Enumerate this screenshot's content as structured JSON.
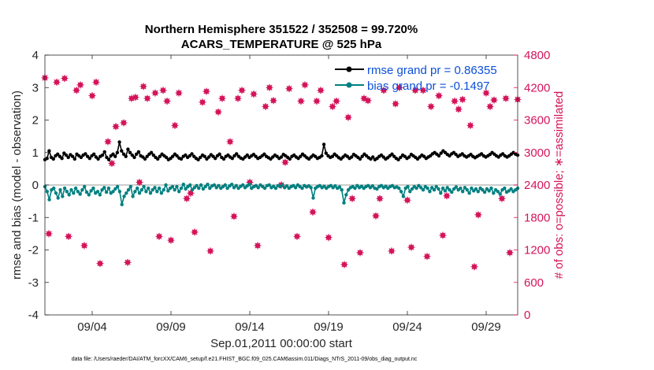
{
  "chart_data": {
    "type": "line",
    "title_line1": "Northern Hemisphere 351522 / 352508 = 99.720%",
    "title_line2": "ACARS_TEMPERATURE @ 525 hPa",
    "xlabel": "Sep.01,2011 00:00:00 start",
    "ylabel_left": "rmse and bias (model - observation)",
    "ylabel_right": "# of obs: o=possible; ∗=assimilated",
    "footer": "data file: /Users/raeder/DAI/ATM_forcXX/CAM6_setup/f.e21.FHIST_BGC.f09_025.CAM6assim.011/Diags_NTrS_2011-09/obs_diag_output.nc",
    "xlim": [
      1,
      31
    ],
    "ylim_left": [
      -4,
      4
    ],
    "ylim_right": [
      0,
      4800
    ],
    "x_ticks": [
      4,
      9,
      14,
      19,
      24,
      29
    ],
    "x_tick_labels": [
      "09/04",
      "09/09",
      "09/14",
      "09/19",
      "09/24",
      "09/29"
    ],
    "y_ticks_left": [
      "-4",
      "-3",
      "-2",
      "-1",
      "0",
      "1",
      "2",
      "3",
      "4"
    ],
    "y_ticks_right": [
      "0",
      "600",
      "1200",
      "1800",
      "2400",
      "3000",
      "3600",
      "4200",
      "4800"
    ],
    "legend": [
      "rmse grand pr = 0.86355",
      "bias grand pr = -0.1497"
    ],
    "colors": {
      "rmse": "#000000",
      "bias": "#008080",
      "obs": "#d4145a",
      "legend_text": "#0b4fd8"
    },
    "series": [
      {
        "name": "rmse",
        "values": [
          0.78,
          0.82,
          1.05,
          0.85,
          0.8,
          0.9,
          0.95,
          0.88,
          0.82,
          0.98,
          0.92,
          0.85,
          0.93,
          0.88,
          0.8,
          0.95,
          0.9,
          0.85,
          0.92,
          0.96,
          0.88,
          0.82,
          0.9,
          0.95,
          0.86,
          0.8,
          0.88,
          0.92,
          1.02,
          0.85,
          0.78,
          0.9,
          0.95,
          0.88,
          1.0,
          1.32,
          1.05,
          0.95,
          0.88,
          1.1,
          1.0,
          0.92,
          0.85,
          0.95,
          1.02,
          0.9,
          0.86,
          0.8,
          0.88,
          0.95,
          1.0,
          0.92,
          0.85,
          0.8,
          0.88,
          0.95,
          0.9,
          0.85,
          0.78,
          0.82,
          0.88,
          0.95,
          0.9,
          0.83,
          0.8,
          0.88,
          0.92,
          0.85,
          0.9,
          0.96,
          0.88,
          0.82,
          0.78,
          0.85,
          0.92,
          0.88,
          0.8,
          0.86,
          0.93,
          0.88,
          0.82,
          0.9,
          0.95,
          0.85,
          0.8,
          0.88,
          0.92,
          0.86,
          0.82,
          0.9,
          0.96,
          0.88,
          0.83,
          0.8,
          0.86,
          0.92,
          0.85,
          0.9,
          0.94,
          0.88,
          0.82,
          0.85,
          0.9,
          0.95,
          0.88,
          0.84,
          0.8,
          0.86,
          0.92,
          0.88,
          0.82,
          0.86,
          0.94,
          0.9,
          0.85,
          0.8,
          0.88,
          0.92,
          0.86,
          0.82,
          0.88,
          0.95,
          0.9,
          0.84,
          0.8,
          0.86,
          0.92,
          0.88,
          0.82,
          0.85,
          0.9,
          1.25,
          0.98,
          0.9,
          0.85,
          0.88,
          0.95,
          0.9,
          0.84,
          0.8,
          0.86,
          0.92,
          0.88,
          0.82,
          0.86,
          0.94,
          0.9,
          0.85,
          0.8,
          0.88,
          0.95,
          0.9,
          0.84,
          0.8,
          0.86,
          0.78,
          0.82,
          0.88,
          0.92,
          0.86,
          0.8,
          0.84,
          0.9,
          0.95,
          0.88,
          0.82,
          0.78,
          0.85,
          0.92,
          0.88,
          0.82,
          0.86,
          0.94,
          0.9,
          0.85,
          0.8,
          0.86,
          0.92,
          0.88,
          0.82,
          0.86,
          0.9,
          0.96,
          1.0,
          0.95,
          0.9,
          0.98,
          1.05,
          1.0,
          0.94,
          0.9,
          0.96,
          1.0,
          0.94,
          0.88,
          0.92,
          0.96,
          0.9,
          0.86,
          0.9,
          0.94,
          0.88,
          0.84,
          0.88,
          0.92,
          0.96,
          0.9,
          0.86,
          0.9,
          0.94,
          1.0,
          0.95,
          0.9,
          0.86,
          0.92,
          0.96,
          0.9,
          0.86,
          0.9,
          0.95,
          1.0,
          0.95,
          0.92
        ]
      },
      {
        "name": "bias",
        "values": [
          -0.05,
          -0.2,
          -0.45,
          -0.15,
          -0.1,
          -0.25,
          -0.4,
          -0.15,
          -0.35,
          -0.1,
          -0.2,
          -0.3,
          -0.15,
          -0.25,
          -0.1,
          -0.2,
          -0.28,
          -0.15,
          -0.05,
          -0.22,
          -0.3,
          -0.18,
          -0.1,
          -0.25,
          -0.2,
          -0.3,
          -0.15,
          -0.08,
          -0.22,
          -0.1,
          -0.25,
          -0.2,
          -0.12,
          -0.05,
          -0.2,
          -0.6,
          -0.35,
          -0.25,
          -0.15,
          -0.05,
          -0.35,
          -0.2,
          -0.1,
          -0.25,
          -0.15,
          -0.05,
          -0.2,
          -0.1,
          -0.25,
          -0.15,
          -0.08,
          -0.2,
          -0.1,
          -0.25,
          -0.15,
          0.0,
          -0.18,
          -0.1,
          -0.05,
          -0.15,
          -0.05,
          -0.2,
          -0.1,
          0.02,
          -0.12,
          -0.05,
          0.0,
          -0.15,
          -0.08,
          -0.02,
          -0.1,
          0.0,
          -0.12,
          -0.05,
          0.02,
          -0.1,
          -0.03,
          0.0,
          -0.08,
          -0.02,
          -0.1,
          -0.05,
          0.0,
          -0.1,
          -0.03,
          0.02,
          -0.08,
          -0.02,
          -0.1,
          -0.04,
          0.0,
          -0.08,
          -0.03,
          0.02,
          -0.1,
          -0.05,
          -0.02,
          -0.08,
          0.0,
          -0.05,
          -0.1,
          -0.02,
          0.0,
          -0.08,
          -0.04,
          -0.1,
          -0.02,
          -0.05,
          0.0,
          -0.08,
          -0.03,
          -0.1,
          -0.05,
          -0.02,
          -0.08,
          0.0,
          -0.05,
          -0.1,
          -0.02,
          -0.06,
          -0.03,
          -0.08,
          -0.4,
          -0.1,
          -0.05,
          -0.02,
          -0.08,
          -0.04,
          -0.1,
          -0.05,
          -0.02,
          -0.08,
          -0.03,
          -0.1,
          -0.06,
          -0.15,
          -0.55,
          -0.3,
          -0.15,
          -0.08,
          -0.05,
          -0.1,
          -0.02,
          -0.08,
          -0.04,
          -0.1,
          -0.05,
          -0.02,
          -0.08,
          -0.03,
          -0.1,
          -0.12,
          -0.05,
          -0.02,
          -0.08,
          -0.04,
          -0.1,
          -0.05,
          -0.02,
          -0.08,
          -0.06,
          -0.1,
          -0.2,
          -0.35,
          -0.1,
          -0.05,
          -0.2,
          -0.12,
          -0.05,
          -0.1,
          -0.02,
          -0.08,
          -0.15,
          -0.05,
          -0.1,
          -0.2,
          -0.08,
          -0.15,
          -0.05,
          -0.12,
          -0.25,
          -0.1,
          -0.18,
          -0.08,
          -0.15,
          -0.22,
          -0.12,
          -0.06,
          -0.15,
          -0.1,
          -0.2,
          -0.08,
          -0.15,
          -0.25,
          -0.1,
          -0.18,
          -0.12,
          -0.2,
          -0.1,
          -0.15,
          -0.22,
          -0.12,
          -0.18,
          -0.1,
          -0.25,
          -0.15,
          -0.2,
          -0.28,
          -0.15,
          -0.1,
          -0.22,
          -0.18,
          -0.12,
          -0.2,
          -0.15,
          -0.1
        ]
      }
    ],
    "obs_counts": {
      "x": [
        1.0,
        1.25,
        1.75,
        2.25,
        2.5,
        3.0,
        3.25,
        3.5,
        4.0,
        4.25,
        4.5,
        5.0,
        5.25,
        5.5,
        6.0,
        6.25,
        6.5,
        6.75,
        7.0,
        7.25,
        7.5,
        8.0,
        8.25,
        8.5,
        8.75,
        9.0,
        9.25,
        9.5,
        10.0,
        10.25,
        10.5,
        11.0,
        11.25,
        11.5,
        12.0,
        12.25,
        12.75,
        13.0,
        13.25,
        13.5,
        14.0,
        14.25,
        14.5,
        15.0,
        15.25,
        15.5,
        16.0,
        16.25,
        16.5,
        17.0,
        17.25,
        17.5,
        18.0,
        18.25,
        18.5,
        19.0,
        19.25,
        19.5,
        20.0,
        20.25,
        20.5,
        21.0,
        21.25,
        21.5,
        22.0,
        22.25,
        22.5,
        23.0,
        23.25,
        23.5,
        24.0,
        24.25,
        24.5,
        25.0,
        25.25,
        25.5,
        26.0,
        26.25,
        26.5,
        27.0,
        27.25,
        27.5,
        28.0,
        28.25,
        28.5,
        29.0,
        29.25,
        29.5,
        30.0,
        30.25,
        30.5,
        31.0
      ],
      "values": [
        4380,
        1500,
        4300,
        4370,
        1450,
        4150,
        4250,
        1280,
        4050,
        4300,
        950,
        3200,
        2800,
        3480,
        3550,
        970,
        4000,
        4020,
        2450,
        4220,
        4000,
        4100,
        1450,
        4150,
        3950,
        1380,
        3500,
        4100,
        2150,
        2250,
        1530,
        3930,
        4130,
        1180,
        3750,
        4000,
        3200,
        1820,
        4000,
        4150,
        2450,
        4080,
        1280,
        3850,
        4200,
        3960,
        2400,
        2820,
        4180,
        1450,
        3950,
        4250,
        1900,
        3950,
        4150,
        1430,
        3850,
        3950,
        930,
        3650,
        2150,
        1150,
        4000,
        3960,
        1830,
        2150,
        4150,
        1180,
        3900,
        4200,
        2120,
        1250,
        4150,
        4150,
        1080,
        3850,
        4050,
        1470,
        2200,
        3950,
        3800,
        3980,
        3500,
        890,
        1850,
        4100,
        3850,
        3970,
        2150,
        4000,
        1150,
        3980
      ]
    }
  }
}
